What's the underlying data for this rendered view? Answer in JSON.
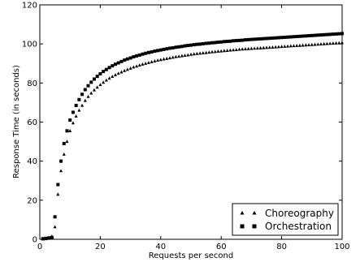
{
  "chart_data": {
    "type": "scatter",
    "title": "",
    "xlabel": "Requests per second",
    "ylabel": "Response Time (in seconds)",
    "xlim": [
      0,
      100
    ],
    "ylim": [
      0,
      120
    ],
    "xticks": [
      0,
      20,
      40,
      60,
      80,
      100
    ],
    "yticks": [
      0,
      20,
      40,
      60,
      80,
      100,
      120
    ],
    "grid": false,
    "legend_position": "bottom-right",
    "series": [
      {
        "name": "Choreography",
        "marker": "triangle",
        "color": "#000000",
        "x": [
          1,
          2,
          3,
          4,
          5,
          6,
          7,
          8,
          9,
          10,
          11,
          12,
          13,
          14,
          15,
          16,
          17,
          18,
          19,
          20,
          21,
          22,
          23,
          24,
          25,
          26,
          27,
          28,
          29,
          30,
          31,
          32,
          33,
          34,
          35,
          36,
          37,
          38,
          39,
          40,
          41,
          42,
          43,
          44,
          45,
          46,
          47,
          48,
          49,
          50,
          51,
          52,
          53,
          54,
          55,
          56,
          57,
          58,
          59,
          60,
          61,
          62,
          63,
          64,
          65,
          66,
          67,
          68,
          69,
          70,
          71,
          72,
          73,
          74,
          75,
          76,
          77,
          78,
          79,
          80,
          81,
          82,
          83,
          84,
          85,
          86,
          87,
          88,
          89,
          90,
          91,
          92,
          93,
          94,
          95,
          96,
          97,
          98,
          99,
          100
        ],
        "y": [
          0.1,
          0.2,
          0.4,
          1.5,
          6.3,
          23,
          35,
          43.5,
          50,
          55.5,
          59.5,
          63,
          66,
          68.5,
          71,
          73,
          74.8,
          76.4,
          77.8,
          79.1,
          80.3,
          81.4,
          82.4,
          83.3,
          84.1,
          84.9,
          85.6,
          86.3,
          86.9,
          87.5,
          88.1,
          88.6,
          89.1,
          89.6,
          90,
          90.4,
          90.8,
          91.2,
          91.6,
          91.9,
          92.2,
          92.5,
          92.8,
          93.1,
          93.4,
          93.6,
          93.9,
          94.1,
          94.3,
          94.6,
          94.8,
          95,
          95.2,
          95.4,
          95.5,
          95.7,
          95.9,
          96,
          96.2,
          96.3,
          96.5,
          96.6,
          96.8,
          96.9,
          97,
          97.2,
          97.3,
          97.4,
          97.5,
          97.6,
          97.7,
          97.8,
          97.9,
          98,
          98.1,
          98.2,
          98.3,
          98.4,
          98.5,
          98.6,
          98.7,
          98.8,
          98.9,
          99,
          99.1,
          99.2,
          99.3,
          99.4,
          99.5,
          99.6,
          99.7,
          99.8,
          99.9,
          100,
          100.1,
          100.2,
          100.3,
          100.4,
          100.5,
          100.6
        ]
      },
      {
        "name": "Orchestration",
        "marker": "square",
        "color": "#000000",
        "x": [
          1,
          2,
          3,
          4,
          5,
          6,
          7,
          8,
          9,
          10,
          11,
          12,
          13,
          14,
          15,
          16,
          17,
          18,
          19,
          20,
          21,
          22,
          23,
          24,
          25,
          26,
          27,
          28,
          29,
          30,
          31,
          32,
          33,
          34,
          35,
          36,
          37,
          38,
          39,
          40,
          41,
          42,
          43,
          44,
          45,
          46,
          47,
          48,
          49,
          50,
          51,
          52,
          53,
          54,
          55,
          56,
          57,
          58,
          59,
          60,
          61,
          62,
          63,
          64,
          65,
          66,
          67,
          68,
          69,
          70,
          71,
          72,
          73,
          74,
          75,
          76,
          77,
          78,
          79,
          80,
          81,
          82,
          83,
          84,
          85,
          86,
          87,
          88,
          89,
          90,
          91,
          92,
          93,
          94,
          95,
          96,
          97,
          98,
          99,
          100
        ],
        "y": [
          0.3,
          0.5,
          0.7,
          0.9,
          11.5,
          28,
          40,
          49,
          55.5,
          61,
          65,
          68.5,
          71.5,
          74.2,
          76.6,
          78.6,
          80.4,
          82,
          83.4,
          84.7,
          85.9,
          86.9,
          87.9,
          88.8,
          89.6,
          90.3,
          91,
          91.7,
          92.3,
          92.8,
          93.4,
          93.9,
          94.3,
          94.8,
          95.2,
          95.6,
          95.9,
          96.3,
          96.6,
          96.9,
          97.2,
          97.5,
          97.8,
          98,
          98.3,
          98.5,
          98.7,
          99,
          99.2,
          99.4,
          99.6,
          99.8,
          99.9,
          100.1,
          100.3,
          100.4,
          100.6,
          100.7,
          100.9,
          101,
          101.2,
          101.3,
          101.4,
          101.6,
          101.7,
          101.8,
          101.9,
          102.1,
          102.2,
          102.3,
          102.4,
          102.5,
          102.6,
          102.7,
          102.8,
          102.9,
          103,
          103.1,
          103.2,
          103.3,
          103.4,
          103.5,
          103.6,
          103.7,
          103.8,
          103.9,
          104,
          104.1,
          104.2,
          104.3,
          104.4,
          104.5,
          104.6,
          104.7,
          104.8,
          104.9,
          105,
          105.1,
          105.2,
          105.3
        ]
      }
    ]
  }
}
